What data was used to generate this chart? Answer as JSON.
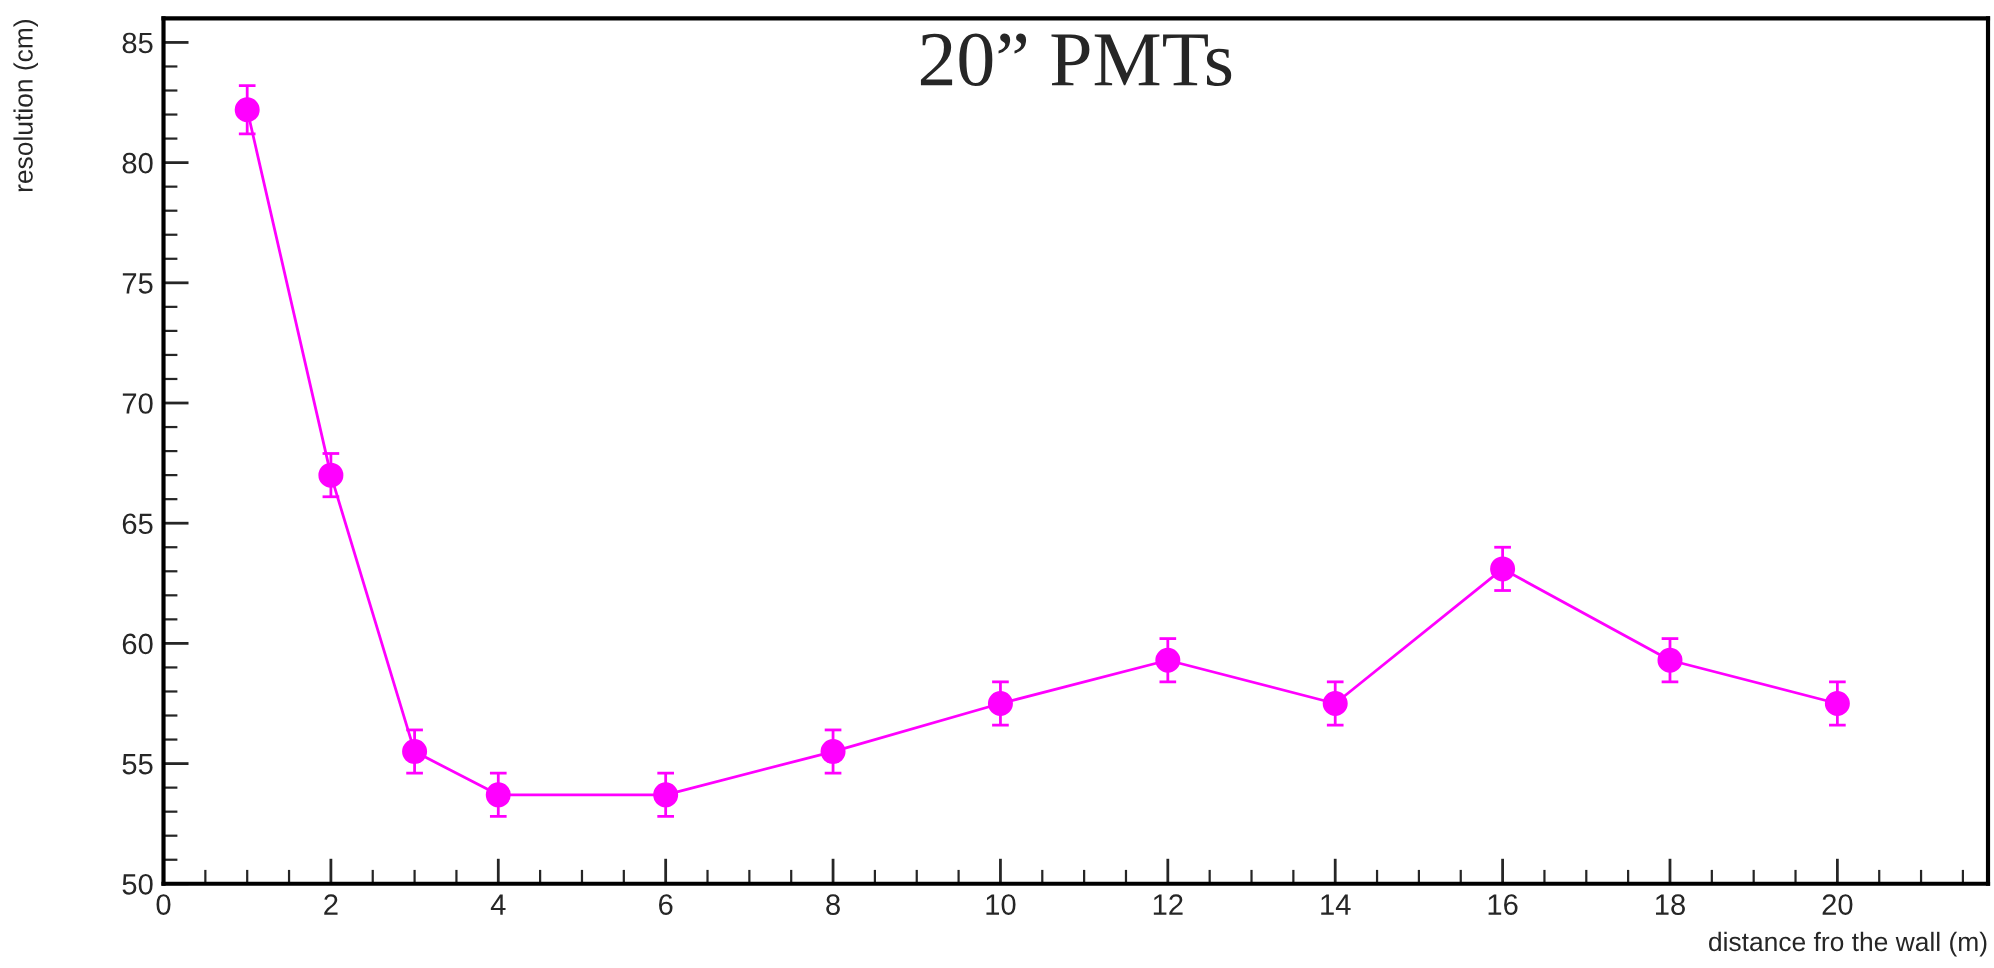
{
  "chart_data": {
    "type": "line",
    "title": "20” PMTs",
    "xlabel": "distance fro the wall (m)",
    "ylabel": "resolution (cm)",
    "x": [
      1,
      2,
      3,
      4,
      6,
      8,
      10,
      12,
      14,
      16,
      18,
      20
    ],
    "series": [
      {
        "color": "#ff00ff",
        "values": [
          82.2,
          67.0,
          55.5,
          53.7,
          53.7,
          55.5,
          57.5,
          59.3,
          57.5,
          63.1,
          59.3,
          57.5
        ],
        "errors": [
          1,
          0.9,
          0.9,
          0.9,
          0.9,
          0.9,
          0.9,
          0.9,
          0.9,
          0.9,
          0.9,
          0.9
        ]
      }
    ],
    "xlim": [
      0,
      21.8
    ],
    "xticks": [
      0,
      2,
      4,
      6,
      8,
      10,
      12,
      14,
      16,
      18,
      20
    ],
    "ylim": [
      50,
      86
    ],
    "yticks": [
      50,
      55,
      60,
      65,
      70,
      75,
      80,
      85
    ],
    "grid": false,
    "marker": "circle",
    "line_style": "solid"
  }
}
